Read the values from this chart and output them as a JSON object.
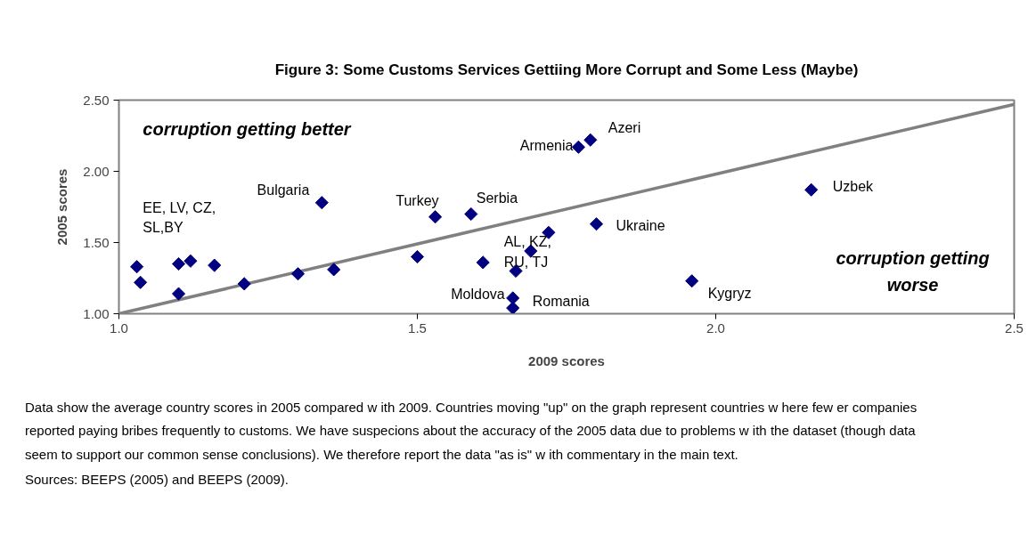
{
  "chart_data": {
    "type": "scatter",
    "title": "Figure 3: Some Customs Services Gettiing More Corrupt and Some Less (Maybe)",
    "xlabel": "2009 scores",
    "ylabel": "2005 scores",
    "xlim": [
      1.0,
      2.5
    ],
    "xticks": [
      {
        "value": 1.0,
        "label": "1.0"
      },
      1.5,
      {
        "value": 2.0,
        "label": "2.0"
      },
      2.5
    ],
    "ylim": [
      1.0,
      2.5
    ],
    "yticks": [
      {
        "value": 1.0,
        "label": "1.00"
      },
      {
        "value": 1.5,
        "label": "1.50"
      },
      {
        "value": 2.0,
        "label": "2.00"
      },
      {
        "value": 2.5,
        "label": "2.50"
      }
    ],
    "grid": false,
    "series": [
      {
        "marker": "diamond",
        "color": "#000080",
        "x": [
          1.03,
          1.036,
          1.1,
          1.12,
          1.16,
          1.1,
          1.21,
          1.3,
          1.36,
          1.34,
          1.5,
          1.53,
          1.59,
          1.61,
          1.72,
          1.69,
          1.665,
          1.66,
          1.66,
          1.77,
          1.79,
          1.8,
          1.96,
          2.16
        ],
        "values": [
          1.33,
          1.22,
          1.35,
          1.37,
          1.34,
          1.14,
          1.21,
          1.28,
          1.31,
          1.78,
          1.4,
          1.68,
          1.7,
          1.36,
          1.57,
          1.44,
          1.3,
          1.11,
          1.04,
          2.17,
          2.22,
          1.63,
          1.23,
          1.87
        ]
      },
      {
        "type": "line",
        "color": "#808080",
        "line_style": "solid",
        "x": [
          1.0,
          2.5
        ],
        "values": [
          1.0,
          2.47
        ]
      }
    ],
    "annotations": [
      "corruption getting better",
      "corruption getting worse",
      "EE, LV, CZ, SL,BY",
      "AL, KZ, RU, TJ",
      {
        "text": "Bulgaria",
        "x": 1.34,
        "y": 1.78
      },
      {
        "text": "Turkey",
        "x": 1.53,
        "y": 1.68
      },
      {
        "text": "Serbia",
        "x": 1.59,
        "y": 1.7
      },
      {
        "text": "Armenia",
        "x": 1.77,
        "y": 2.17
      },
      {
        "text": "Azeri",
        "x": 1.79,
        "y": 2.22
      },
      {
        "text": "Ukraine",
        "x": 1.8,
        "y": 1.63
      },
      {
        "text": "Uzbek",
        "x": 2.16,
        "y": 1.87
      },
      {
        "text": "Kygryz",
        "x": 1.96,
        "y": 1.23
      },
      {
        "text": "Moldova",
        "x": 1.66,
        "y": 1.11
      },
      {
        "text": "Romania",
        "x": 1.66,
        "y": 1.04
      },
      "Data show  the average country scores in 2005 compared w ith 2009. Countries moving \"up\" on the graph represent countries w here few er companies reported paying bribes frequently to customs. We have suspecions about the accuracy of the 2005 data due to problems w ith the dataset (though data seem to support our common sense conclusions). We therefore report the data \"as is\" w ith commentary in the main text.",
      "Sources: BEEPS (2005) and BEEPS (2009)."
    ]
  }
}
